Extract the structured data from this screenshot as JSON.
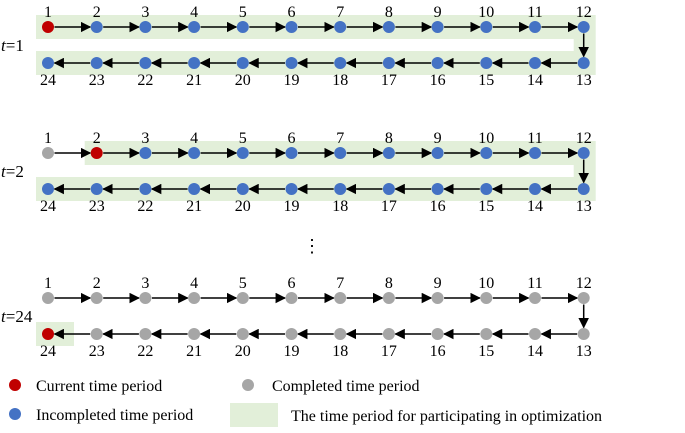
{
  "colors": {
    "current": "#c00000",
    "completed": "#a6a6a6",
    "incompleted": "#4472c4",
    "optimization": "#e2efd9",
    "arrow": "#000000"
  },
  "panels": [
    {
      "prefix": "t",
      "suffix": "=1",
      "current": 1,
      "completed": [],
      "optimization": "all",
      "labels": [
        "1",
        "2",
        "3",
        "4",
        "5",
        "6",
        "7",
        "8",
        "9",
        "10",
        "11",
        "12",
        "13",
        "14",
        "15",
        "16",
        "17",
        "18",
        "19",
        "20",
        "21",
        "22",
        "23",
        "24"
      ]
    },
    {
      "prefix": "t",
      "suffix": "=2",
      "current": 2,
      "completed": [
        1
      ],
      "optimization": "from-current",
      "labels": [
        "1",
        "2",
        "3",
        "4",
        "5",
        "6",
        "7",
        "8",
        "9",
        "10",
        "11",
        "12",
        "13",
        "14",
        "15",
        "16",
        "17",
        "18",
        "19",
        "20",
        "21",
        "22",
        "23",
        "24"
      ]
    },
    {
      "prefix": "t",
      "suffix": "=24",
      "current": 24,
      "completed": [
        1,
        2,
        3,
        4,
        5,
        6,
        7,
        8,
        9,
        10,
        11,
        12,
        13,
        14,
        15,
        16,
        17,
        18,
        19,
        20,
        21,
        22,
        23
      ],
      "optimization": "from-current",
      "labels": [
        "1",
        "2",
        "3",
        "4",
        "5",
        "6",
        "7",
        "8",
        "9",
        "10",
        "11",
        "12",
        "13",
        "14",
        "15",
        "16",
        "17",
        "18",
        "19",
        "20",
        "21",
        "22",
        "23",
        "24"
      ]
    }
  ],
  "ellipsis": "⋮",
  "legend": {
    "current": "Current time period",
    "completed": "Completed time period",
    "incompleted": "Incompleted time period",
    "optimization": "The time period for participating in optimization"
  }
}
